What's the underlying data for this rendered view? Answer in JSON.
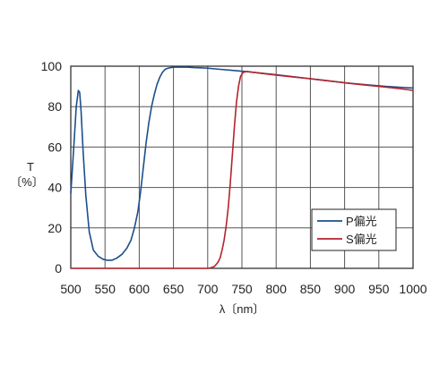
{
  "chart_data": {
    "type": "line",
    "title": "",
    "xlabel": "λ〔nm〕",
    "ylabel": [
      "T",
      "〔%〕"
    ],
    "xlim": [
      500,
      1000
    ],
    "ylim": [
      0,
      100
    ],
    "x_ticks": [
      "500",
      "550",
      "600",
      "650",
      "700",
      "750",
      "800",
      "850",
      "900",
      "950",
      "1000"
    ],
    "y_ticks": [
      "0",
      "20",
      "40",
      "60",
      "80",
      "100"
    ],
    "grid": true,
    "legend_position": "bottom-right",
    "series": [
      {
        "name": "P偏光",
        "color": "#1c4f8c",
        "x": [
          500,
          504,
          508,
          511,
          513,
          515,
          518,
          522,
          527,
          533,
          540,
          547,
          553,
          560,
          567,
          575,
          582,
          588,
          593,
          598,
          602,
          606,
          610,
          614,
          618,
          622,
          626,
          630,
          634,
          638,
          642,
          646,
          650,
          660,
          670,
          680,
          690,
          700,
          720,
          740,
          760,
          780,
          800,
          820,
          840,
          860,
          880,
          900,
          920,
          940,
          960,
          980,
          1000
        ],
        "y": [
          37,
          58,
          80,
          88,
          87,
          78,
          58,
          36,
          18,
          9,
          6,
          4.5,
          4,
          4,
          5,
          7,
          10,
          14,
          20,
          28,
          38,
          50,
          62,
          72,
          80,
          86,
          91,
          94.5,
          97,
          98.5,
          99,
          99.3,
          99.5,
          99.5,
          99.5,
          99.3,
          99.2,
          99,
          98.4,
          97.8,
          97.2,
          96.5,
          95.8,
          95,
          94.2,
          93.4,
          92.6,
          91.8,
          91.2,
          90.6,
          90,
          89.6,
          89.2
        ]
      },
      {
        "name": "S偏光",
        "color": "#b4232d",
        "x": [
          500,
          600,
          690,
          700,
          705,
          710,
          715,
          718,
          721,
          724,
          727,
          730,
          733,
          736,
          739,
          742,
          745,
          748,
          752,
          758,
          770,
          790,
          810,
          830,
          850,
          870,
          890,
          910,
          930,
          950,
          970,
          990,
          1000
        ],
        "y": [
          0,
          0,
          0,
          0,
          0.3,
          1,
          3,
          5,
          9,
          14,
          21,
          30,
          42,
          56,
          70,
          82,
          90,
          95,
          97,
          97.4,
          96.8,
          96,
          95.2,
          94.5,
          93.8,
          93,
          92.2,
          91.4,
          90.7,
          90,
          89.3,
          88.5,
          88
        ]
      }
    ]
  }
}
